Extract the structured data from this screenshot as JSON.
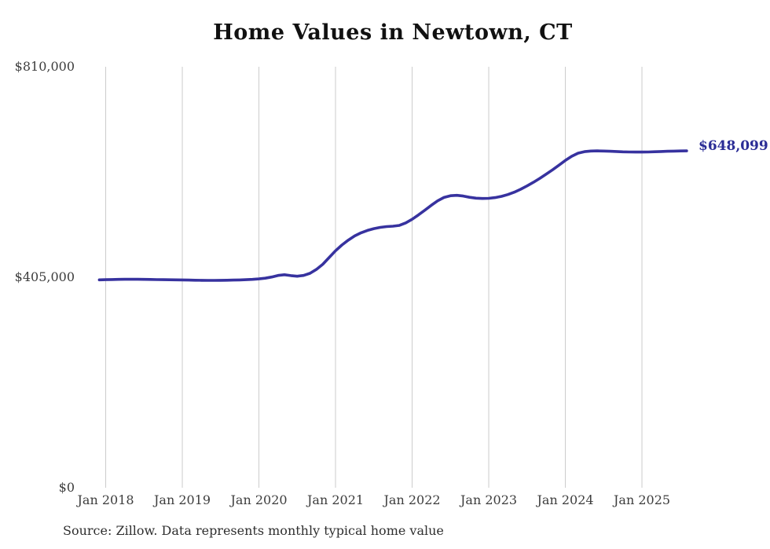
{
  "colors": {
    "background": "#ffffff",
    "line": "#37329f",
    "end_label": "#2b2d96",
    "grid": "#cccccc",
    "axis_text": "#3d3d3d",
    "title_text": "#111111",
    "source_text": "#2f2f2f"
  },
  "chart_data": {
    "type": "line",
    "title": "Home Values in Newtown, CT",
    "series_name": "Typical home value",
    "frequency": "monthly",
    "xlabel": "",
    "ylabel": "",
    "ylim": [
      0,
      810000
    ],
    "grid": "vertical-only",
    "legend": false,
    "final_value_label": "$648,099",
    "source": "Source: Zillow. Data represents monthly typical home value",
    "y_ticks": [
      {
        "label": "$810,000",
        "value": 810000
      },
      {
        "label": "$405,000",
        "value": 405000
      },
      {
        "label": "$0",
        "value": 0
      }
    ],
    "x_ticks": [
      {
        "label": "Jan 2018",
        "index": 1
      },
      {
        "label": "Jan 2019",
        "index": 13
      },
      {
        "label": "Jan 2020",
        "index": 25
      },
      {
        "label": "Jan 2021",
        "index": 37
      },
      {
        "label": "Jan 2022",
        "index": 49
      },
      {
        "label": "Jan 2023",
        "index": 61
      },
      {
        "label": "Jan 2024",
        "index": 73
      },
      {
        "label": "Jan 2025",
        "index": 85
      }
    ],
    "categories": [
      "2017-12",
      "2018-01",
      "2018-02",
      "2018-03",
      "2018-04",
      "2018-05",
      "2018-06",
      "2018-07",
      "2018-08",
      "2018-09",
      "2018-10",
      "2018-11",
      "2018-12",
      "2019-01",
      "2019-02",
      "2019-03",
      "2019-04",
      "2019-05",
      "2019-06",
      "2019-07",
      "2019-08",
      "2019-09",
      "2019-10",
      "2019-11",
      "2019-12",
      "2020-01",
      "2020-02",
      "2020-03",
      "2020-04",
      "2020-05",
      "2020-06",
      "2020-07",
      "2020-08",
      "2020-09",
      "2020-10",
      "2020-11",
      "2020-12",
      "2021-01",
      "2021-02",
      "2021-03",
      "2021-04",
      "2021-05",
      "2021-06",
      "2021-07",
      "2021-08",
      "2021-09",
      "2021-10",
      "2021-11",
      "2021-12",
      "2022-01",
      "2022-02",
      "2022-03",
      "2022-04",
      "2022-05",
      "2022-06",
      "2022-07",
      "2022-08",
      "2022-09",
      "2022-10",
      "2022-11",
      "2022-12",
      "2023-01",
      "2023-02",
      "2023-03",
      "2023-04",
      "2023-05",
      "2023-06",
      "2023-07",
      "2023-08",
      "2023-09",
      "2023-10",
      "2023-11",
      "2023-12",
      "2024-01",
      "2024-02",
      "2024-03",
      "2024-04",
      "2024-05",
      "2024-06",
      "2024-07",
      "2024-08",
      "2024-09",
      "2024-10",
      "2024-11",
      "2024-12",
      "2025-01",
      "2025-02",
      "2025-03",
      "2025-04",
      "2025-05",
      "2025-06",
      "2025-07",
      "2025-08"
    ],
    "values": [
      400000,
      400300,
      400600,
      400900,
      401100,
      401200,
      401100,
      400900,
      400700,
      400500,
      400300,
      400100,
      400000,
      399800,
      399500,
      399300,
      399100,
      399000,
      399000,
      399100,
      399300,
      399600,
      399900,
      400300,
      400900,
      401800,
      403200,
      405500,
      408500,
      409800,
      408200,
      407000,
      408500,
      412500,
      420000,
      430000,
      443000,
      456000,
      467000,
      476500,
      484500,
      490500,
      495000,
      498500,
      501000,
      502500,
      503300,
      504800,
      509500,
      516500,
      525000,
      534000,
      543500,
      552000,
      558500,
      561800,
      562600,
      561200,
      558800,
      557200,
      556600,
      556900,
      558200,
      560700,
      564200,
      568700,
      574200,
      580700,
      587700,
      595200,
      603200,
      611700,
      620700,
      629700,
      637700,
      643700,
      646700,
      647900,
      648100,
      647900,
      647400,
      646900,
      646400,
      646100,
      645900,
      645900,
      646100,
      646500,
      647000,
      647400,
      647700,
      647950,
      648099
    ]
  }
}
